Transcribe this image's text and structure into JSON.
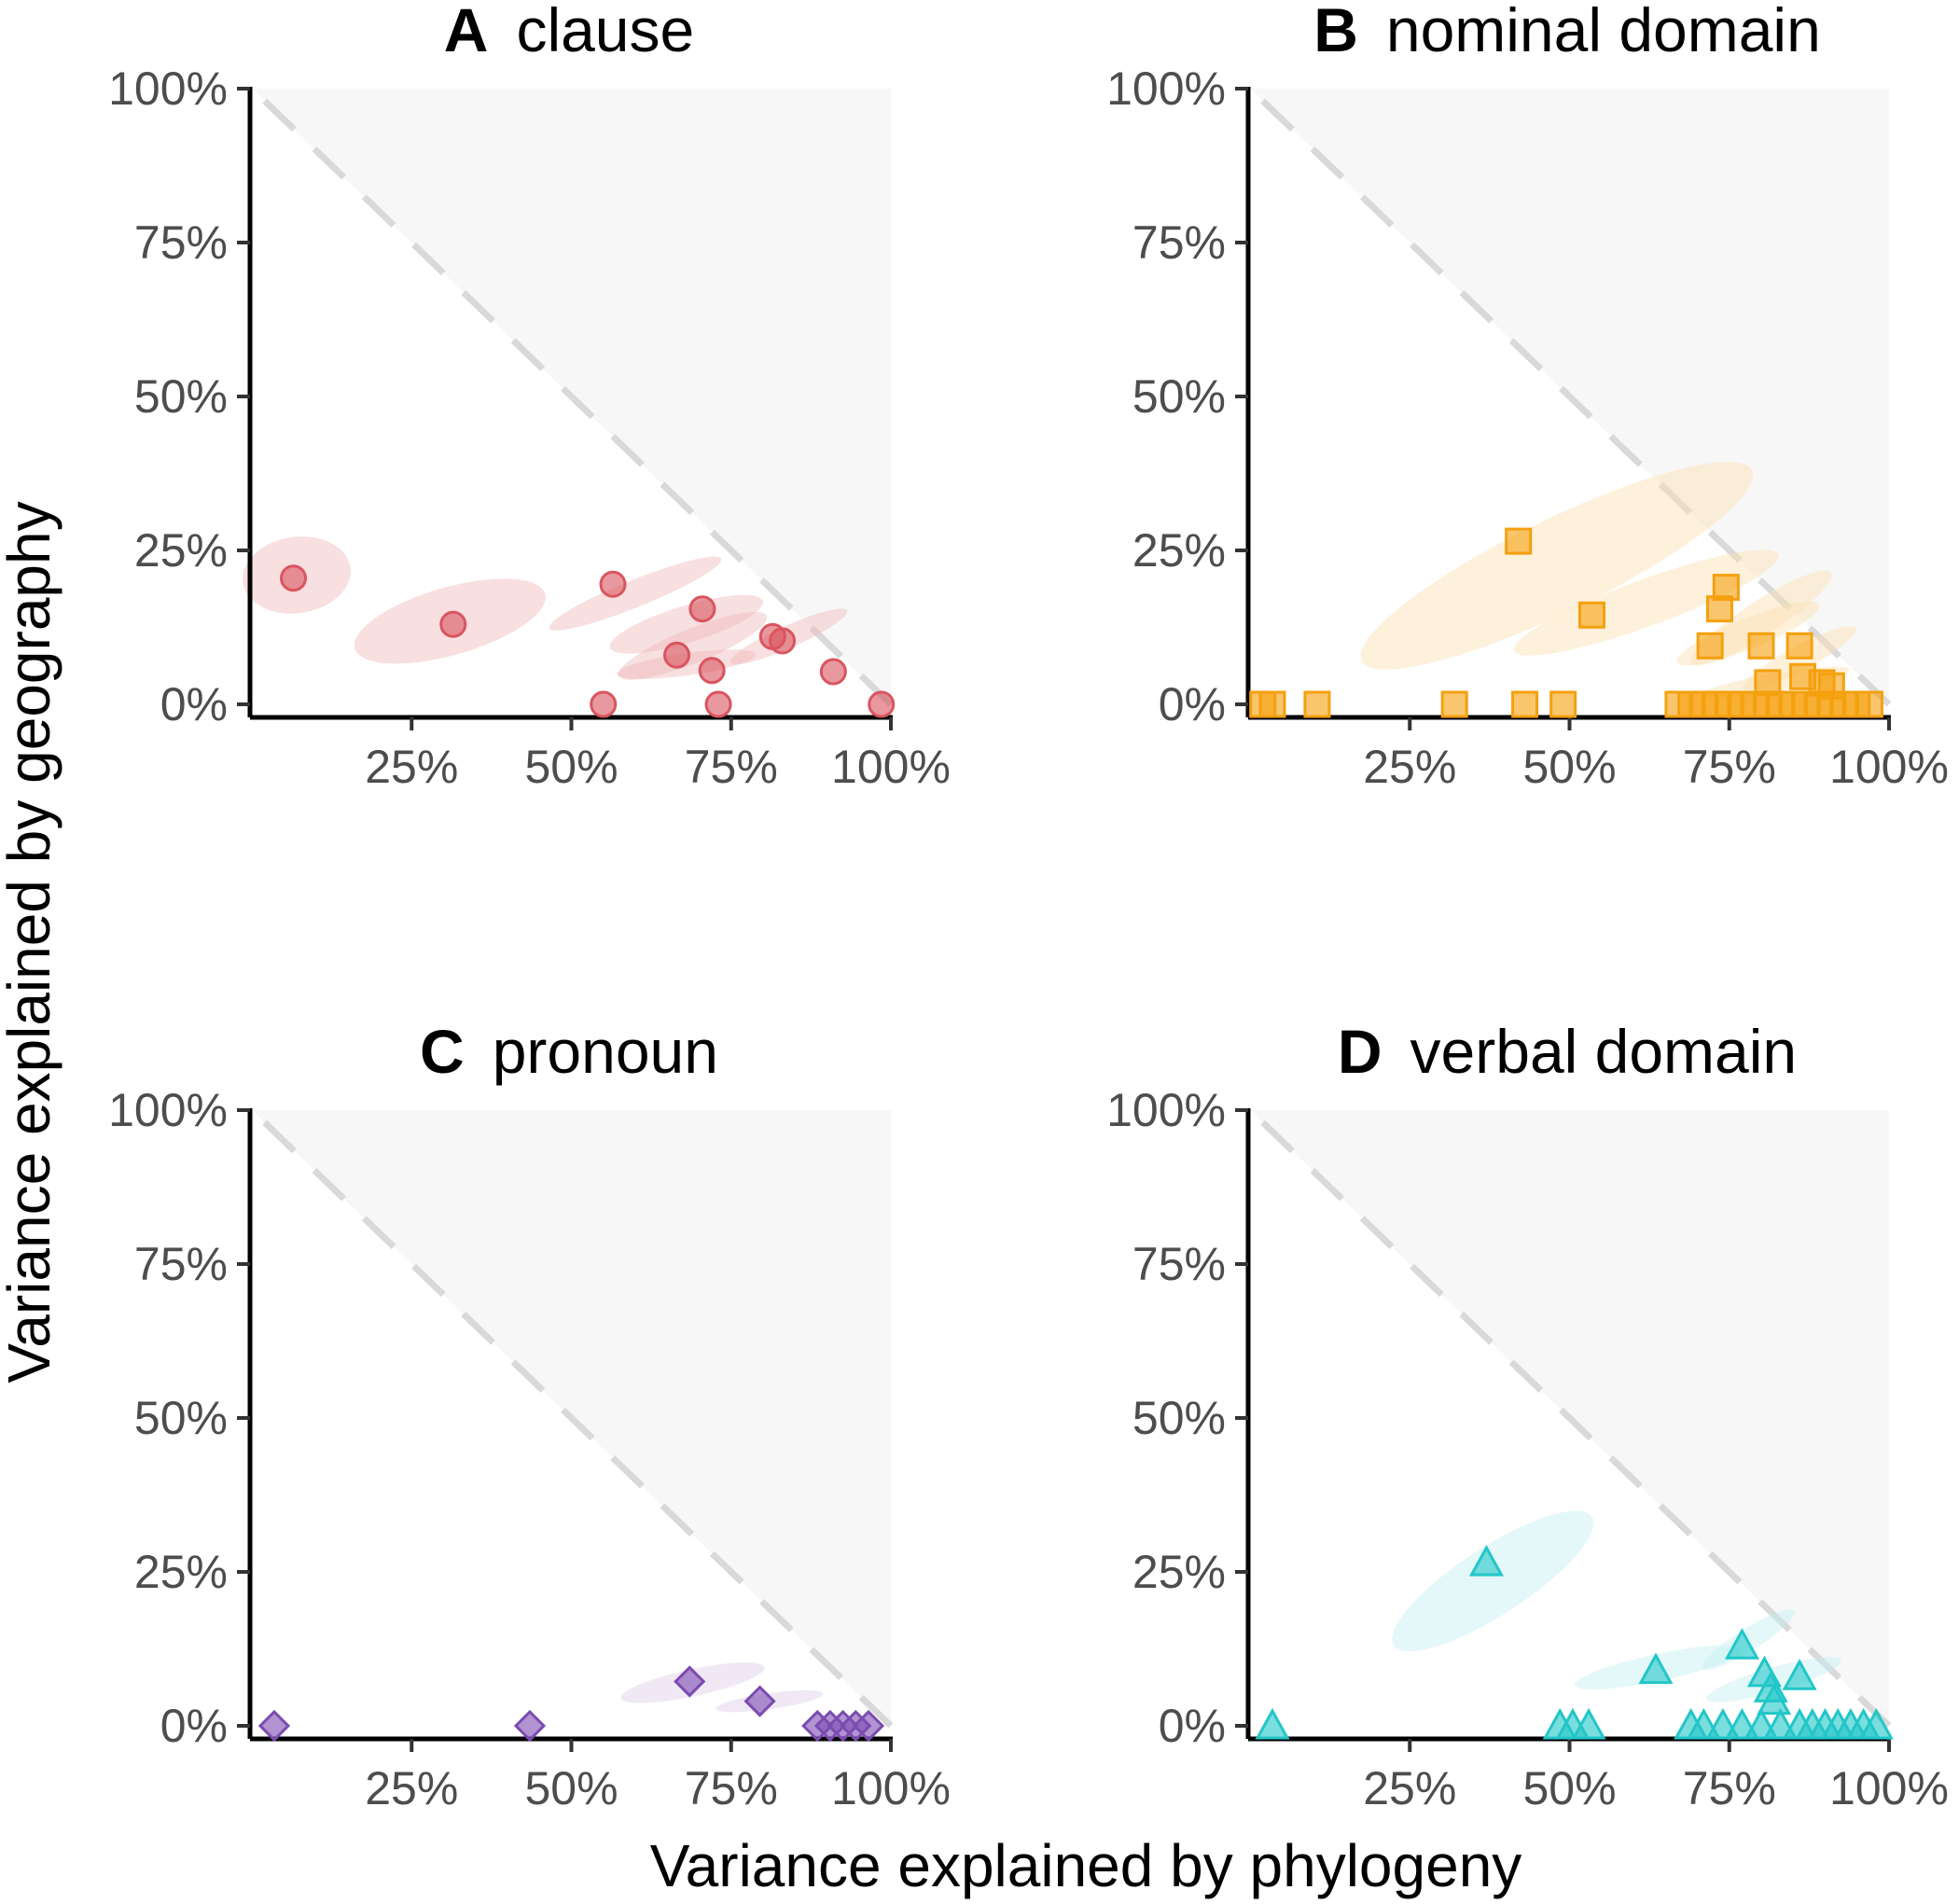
{
  "figure": {
    "xlabel": "Variance explained by phylogeny",
    "ylabel": "Variance explained by geography"
  },
  "chart_data": [
    {
      "type": "scatter",
      "letter": "A",
      "title": "clause",
      "xlabel": "Variance explained by phylogeny",
      "ylabel": "Variance explained by geography",
      "xlim": [
        0,
        1
      ],
      "ylim": [
        0,
        1
      ],
      "xticks": [
        "25%",
        "50%",
        "75%",
        "100%"
      ],
      "yticks": [
        "0%",
        "25%",
        "50%",
        "75%",
        "100%"
      ],
      "shape": "circle",
      "color": "#d9555f",
      "ellipse_color": "#efb8bb",
      "ellipses": [
        {
          "cx": 0.07,
          "cy": 0.21,
          "rx": 0.085,
          "ry": 0.062,
          "angle": -8
        },
        {
          "cx": 0.31,
          "cy": 0.135,
          "rx": 0.155,
          "ry": 0.055,
          "angle": -16
        },
        {
          "cx": 0.6,
          "cy": 0.18,
          "rx": 0.145,
          "ry": 0.022,
          "angle": -22
        },
        {
          "cx": 0.68,
          "cy": 0.13,
          "rx": 0.125,
          "ry": 0.03,
          "angle": -17
        },
        {
          "cx": 0.69,
          "cy": 0.095,
          "rx": 0.125,
          "ry": 0.028,
          "angle": -22
        },
        {
          "cx": 0.68,
          "cy": 0.065,
          "rx": 0.11,
          "ry": 0.018,
          "angle": -8
        },
        {
          "cx": 0.84,
          "cy": 0.11,
          "rx": 0.1,
          "ry": 0.018,
          "angle": -24
        }
      ],
      "points": [
        {
          "x": 0.065,
          "y": 0.205
        },
        {
          "x": 0.315,
          "y": 0.13
        },
        {
          "x": 0.565,
          "y": 0.195
        },
        {
          "x": 0.705,
          "y": 0.155
        },
        {
          "x": 0.815,
          "y": 0.11
        },
        {
          "x": 0.83,
          "y": 0.103
        },
        {
          "x": 0.665,
          "y": 0.08
        },
        {
          "x": 0.72,
          "y": 0.055
        },
        {
          "x": 0.91,
          "y": 0.053
        },
        {
          "x": 0.55,
          "y": 0.0
        },
        {
          "x": 0.73,
          "y": 0.0
        },
        {
          "x": 0.985,
          "y": 0.0
        }
      ]
    },
    {
      "type": "scatter",
      "letter": "B",
      "title": "nominal domain",
      "xlabel": "Variance explained by phylogeny",
      "ylabel": "Variance explained by geography",
      "xlim": [
        0,
        1
      ],
      "ylim": [
        0,
        1
      ],
      "xticks": [
        "25%",
        "50%",
        "75%",
        "100%"
      ],
      "yticks": [
        "0%",
        "25%",
        "50%",
        "75%",
        "100%"
      ],
      "shape": "square",
      "color": "#f5a00e",
      "ellipse_color": "#fde1b1",
      "ellipses": [
        {
          "cx": 0.48,
          "cy": 0.225,
          "rx": 0.34,
          "ry": 0.075,
          "angle": -26
        },
        {
          "cx": 0.62,
          "cy": 0.165,
          "rx": 0.22,
          "ry": 0.038,
          "angle": -20
        },
        {
          "cx": 0.8,
          "cy": 0.14,
          "rx": 0.13,
          "ry": 0.028,
          "angle": -33
        },
        {
          "cx": 0.78,
          "cy": 0.115,
          "rx": 0.12,
          "ry": 0.025,
          "angle": -22
        },
        {
          "cx": 0.86,
          "cy": 0.075,
          "rx": 0.1,
          "ry": 0.02,
          "angle": -28
        },
        {
          "cx": 0.82,
          "cy": 0.035,
          "rx": 0.12,
          "ry": 0.015,
          "angle": -10
        }
      ],
      "points": [
        {
          "x": 0.42,
          "y": 0.265
        },
        {
          "x": 0.745,
          "y": 0.19
        },
        {
          "x": 0.735,
          "y": 0.155
        },
        {
          "x": 0.535,
          "y": 0.145
        },
        {
          "x": 0.72,
          "y": 0.095
        },
        {
          "x": 0.8,
          "y": 0.095
        },
        {
          "x": 0.86,
          "y": 0.095
        },
        {
          "x": 0.865,
          "y": 0.045
        },
        {
          "x": 0.81,
          "y": 0.035
        },
        {
          "x": 0.895,
          "y": 0.035
        },
        {
          "x": 0.91,
          "y": 0.03
        },
        {
          "x": 0.02,
          "y": 0.0
        },
        {
          "x": 0.035,
          "y": 0.0
        },
        {
          "x": 0.105,
          "y": 0.0
        },
        {
          "x": 0.32,
          "y": 0.0
        },
        {
          "x": 0.43,
          "y": 0.0
        },
        {
          "x": 0.49,
          "y": 0.0
        },
        {
          "x": 0.67,
          "y": 0.0
        },
        {
          "x": 0.69,
          "y": 0.0
        },
        {
          "x": 0.71,
          "y": 0.0
        },
        {
          "x": 0.73,
          "y": 0.0
        },
        {
          "x": 0.75,
          "y": 0.0
        },
        {
          "x": 0.77,
          "y": 0.0
        },
        {
          "x": 0.79,
          "y": 0.0
        },
        {
          "x": 0.81,
          "y": 0.0
        },
        {
          "x": 0.83,
          "y": 0.0
        },
        {
          "x": 0.85,
          "y": 0.0
        },
        {
          "x": 0.87,
          "y": 0.0
        },
        {
          "x": 0.89,
          "y": 0.0
        },
        {
          "x": 0.91,
          "y": 0.0
        },
        {
          "x": 0.93,
          "y": 0.0
        },
        {
          "x": 0.95,
          "y": 0.0
        },
        {
          "x": 0.97,
          "y": 0.0
        }
      ]
    },
    {
      "type": "scatter",
      "letter": "C",
      "title": "pronoun",
      "xlabel": "Variance explained by phylogeny",
      "ylabel": "Variance explained by geography",
      "xlim": [
        0,
        1
      ],
      "ylim": [
        0,
        1
      ],
      "xticks": [
        "25%",
        "50%",
        "75%",
        "100%"
      ],
      "yticks": [
        "0%",
        "25%",
        "50%",
        "75%",
        "100%"
      ],
      "shape": "diamond",
      "color": "#7b4bb0",
      "ellipse_color": "#ddcfe9",
      "ellipses": [
        {
          "cx": 0.69,
          "cy": 0.07,
          "rx": 0.115,
          "ry": 0.022,
          "angle": -12
        },
        {
          "cx": 0.81,
          "cy": 0.04,
          "rx": 0.085,
          "ry": 0.013,
          "angle": -8
        }
      ],
      "points": [
        {
          "x": 0.035,
          "y": 0.0
        },
        {
          "x": 0.435,
          "y": 0.0
        },
        {
          "x": 0.685,
          "y": 0.072
        },
        {
          "x": 0.795,
          "y": 0.04
        },
        {
          "x": 0.885,
          "y": 0.0
        },
        {
          "x": 0.905,
          "y": 0.0
        },
        {
          "x": 0.925,
          "y": 0.0
        },
        {
          "x": 0.945,
          "y": 0.0
        },
        {
          "x": 0.965,
          "y": 0.0
        }
      ]
    },
    {
      "type": "scatter",
      "letter": "D",
      "title": "verbal domain",
      "xlabel": "Variance explained by phylogeny",
      "ylabel": "Variance explained by geography",
      "xlim": [
        0,
        1
      ],
      "ylim": [
        0,
        1
      ],
      "xticks": [
        "25%",
        "50%",
        "75%",
        "100%"
      ],
      "yticks": [
        "0%",
        "25%",
        "50%",
        "75%",
        "100%"
      ],
      "shape": "triangle",
      "color": "#22c6c8",
      "ellipse_color": "#c5f0f1",
      "ellipses": [
        {
          "cx": 0.38,
          "cy": 0.235,
          "rx": 0.185,
          "ry": 0.055,
          "angle": -33
        },
        {
          "cx": 0.64,
          "cy": 0.095,
          "rx": 0.135,
          "ry": 0.022,
          "angle": -12
        },
        {
          "cx": 0.78,
          "cy": 0.14,
          "rx": 0.085,
          "ry": 0.018,
          "angle": -32
        },
        {
          "cx": 0.82,
          "cy": 0.075,
          "rx": 0.11,
          "ry": 0.02,
          "angle": -16
        }
      ],
      "points": [
        {
          "x": 0.37,
          "y": 0.265
        },
        {
          "x": 0.77,
          "y": 0.13
        },
        {
          "x": 0.635,
          "y": 0.09
        },
        {
          "x": 0.805,
          "y": 0.085
        },
        {
          "x": 0.86,
          "y": 0.08
        },
        {
          "x": 0.815,
          "y": 0.06
        },
        {
          "x": 0.82,
          "y": 0.04
        },
        {
          "x": 0.035,
          "y": 0.0
        },
        {
          "x": 0.485,
          "y": 0.0
        },
        {
          "x": 0.505,
          "y": 0.0
        },
        {
          "x": 0.53,
          "y": 0.0
        },
        {
          "x": 0.69,
          "y": 0.0
        },
        {
          "x": 0.71,
          "y": 0.0
        },
        {
          "x": 0.74,
          "y": 0.0
        },
        {
          "x": 0.77,
          "y": 0.0
        },
        {
          "x": 0.8,
          "y": 0.0
        },
        {
          "x": 0.83,
          "y": 0.0
        },
        {
          "x": 0.86,
          "y": 0.0
        },
        {
          "x": 0.88,
          "y": 0.0
        },
        {
          "x": 0.9,
          "y": 0.0
        },
        {
          "x": 0.92,
          "y": 0.0
        },
        {
          "x": 0.94,
          "y": 0.0
        },
        {
          "x": 0.96,
          "y": 0.0
        },
        {
          "x": 0.98,
          "y": 0.0
        }
      ]
    }
  ]
}
